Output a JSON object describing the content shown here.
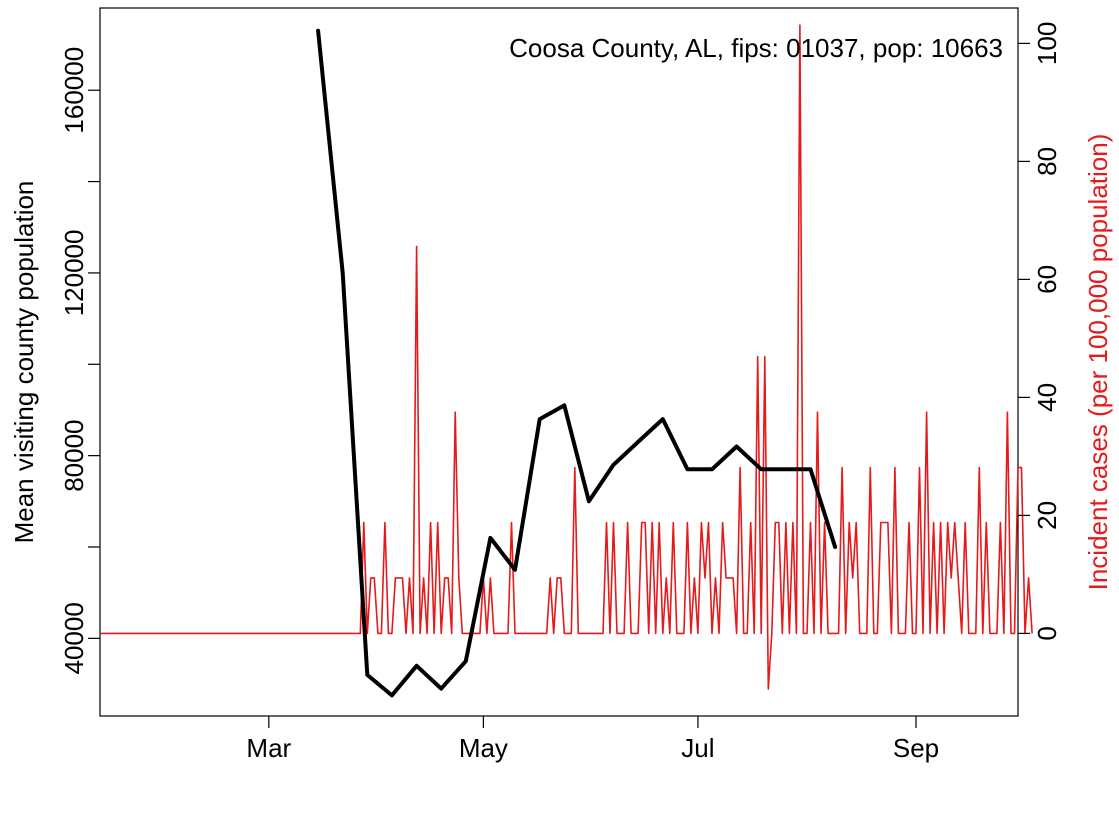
{
  "chart_data": {
    "type": "line",
    "annotation": "Coosa County, AL, fips: 01037, pop: 10663",
    "ylabel_left": "Mean visiting county population",
    "ylabel_right": "Incident cases (per 100,000 population)",
    "colors": {
      "left_series": "#000000",
      "right_series": "#e41a1c",
      "axis": "#000000"
    },
    "x_axis": {
      "range": [
        "2020-01-13",
        "2020-09-30"
      ],
      "ticks": [
        {
          "date": "2020-03-01",
          "label": "Mar"
        },
        {
          "date": "2020-05-01",
          "label": "May"
        },
        {
          "date": "2020-07-01",
          "label": "Jul"
        },
        {
          "date": "2020-09-01",
          "label": "Sep"
        }
      ]
    },
    "y_left": {
      "range": [
        23000,
        178000
      ],
      "ticks": [
        40000,
        80000,
        120000,
        160000
      ]
    },
    "y_right": {
      "range": [
        -14,
        106
      ],
      "ticks": [
        0,
        20,
        40,
        60,
        80,
        100
      ]
    },
    "series": [
      {
        "axis": "left",
        "style": "thick",
        "points": [
          [
            "2020-03-15",
            173000
          ],
          [
            "2020-03-22",
            120000
          ],
          [
            "2020-03-29",
            32000
          ],
          [
            "2020-04-05",
            27500
          ],
          [
            "2020-04-12",
            34000
          ],
          [
            "2020-04-19",
            29000
          ],
          [
            "2020-04-26",
            35000
          ],
          [
            "2020-05-03",
            62000
          ],
          [
            "2020-05-10",
            55000
          ],
          [
            "2020-05-17",
            88000
          ],
          [
            "2020-05-24",
            91000
          ],
          [
            "2020-05-31",
            70000
          ],
          [
            "2020-06-07",
            78000
          ],
          [
            "2020-06-14",
            83000
          ],
          [
            "2020-06-21",
            88000
          ],
          [
            "2020-06-28",
            77000
          ],
          [
            "2020-07-05",
            77000
          ],
          [
            "2020-07-12",
            82000
          ],
          [
            "2020-07-19",
            77000
          ],
          [
            "2020-07-26",
            77000
          ],
          [
            "2020-08-02",
            77000
          ],
          [
            "2020-08-09",
            60000
          ]
        ]
      },
      {
        "axis": "right",
        "style": "thin",
        "start": "2020-01-13",
        "values": [
          0,
          0,
          0,
          0,
          0,
          0,
          0,
          0,
          0,
          0,
          0,
          0,
          0,
          0,
          0,
          0,
          0,
          0,
          0,
          0,
          0,
          0,
          0,
          0,
          0,
          0,
          0,
          0,
          0,
          0,
          0,
          0,
          0,
          0,
          0,
          0,
          0,
          0,
          0,
          0,
          0,
          0,
          0,
          0,
          0,
          0,
          0,
          0,
          0,
          0,
          0,
          0,
          0,
          0,
          0,
          0,
          0,
          0,
          0,
          0,
          0,
          0,
          0,
          0,
          0,
          0,
          0,
          0,
          0,
          0,
          0,
          0,
          0,
          0,
          0,
          18.8,
          0,
          9.4,
          9.4,
          0,
          0,
          18.8,
          0,
          0,
          9.4,
          9.4,
          9.4,
          0,
          9.4,
          0,
          65.6,
          0,
          9.4,
          0,
          18.8,
          0,
          18.8,
          0,
          9.4,
          9.4,
          0,
          37.5,
          9.4,
          0,
          0,
          0,
          0,
          0,
          0,
          9.4,
          0,
          9.4,
          0,
          0,
          0,
          0,
          0,
          18.8,
          0,
          0,
          0,
          0,
          0,
          0,
          0,
          0,
          0,
          0,
          9.4,
          0,
          9.4,
          9.4,
          0,
          0,
          0,
          28.1,
          0,
          0,
          0,
          0,
          0,
          0,
          0,
          0,
          18.8,
          0,
          18.8,
          0,
          0,
          0,
          18.8,
          0,
          0,
          0,
          18.8,
          18.8,
          0,
          18.8,
          0,
          18.8,
          0,
          9.4,
          0,
          18.8,
          0,
          0,
          0,
          18.8,
          0,
          9.4,
          0,
          18.8,
          9.4,
          18.8,
          0,
          9.4,
          0,
          18.8,
          9.4,
          9.4,
          9.4,
          0,
          28.1,
          0,
          0,
          18.8,
          0,
          46.9,
          0,
          46.9,
          -9.4,
          0,
          18.8,
          18.8,
          0,
          18.8,
          0,
          18.8,
          0,
          103.1,
          0,
          0,
          18.8,
          0,
          37.5,
          0,
          18.8,
          0,
          0,
          0,
          0,
          28.1,
          0,
          18.8,
          9.4,
          18.8,
          0,
          0,
          0,
          28.1,
          0,
          0,
          18.8,
          18.8,
          18.8,
          0,
          28.1,
          0,
          0,
          0,
          18.8,
          0,
          0,
          28.1,
          0,
          37.5,
          0,
          18.8,
          0,
          18.8,
          0,
          18.8,
          9.4,
          18.8,
          9.4,
          0,
          18.8,
          0,
          0,
          0,
          28.1,
          0,
          18.8,
          0,
          0,
          0,
          18.8,
          0,
          37.5,
          0,
          0,
          28.1,
          28.1,
          0,
          9.4,
          0
        ]
      }
    ]
  }
}
